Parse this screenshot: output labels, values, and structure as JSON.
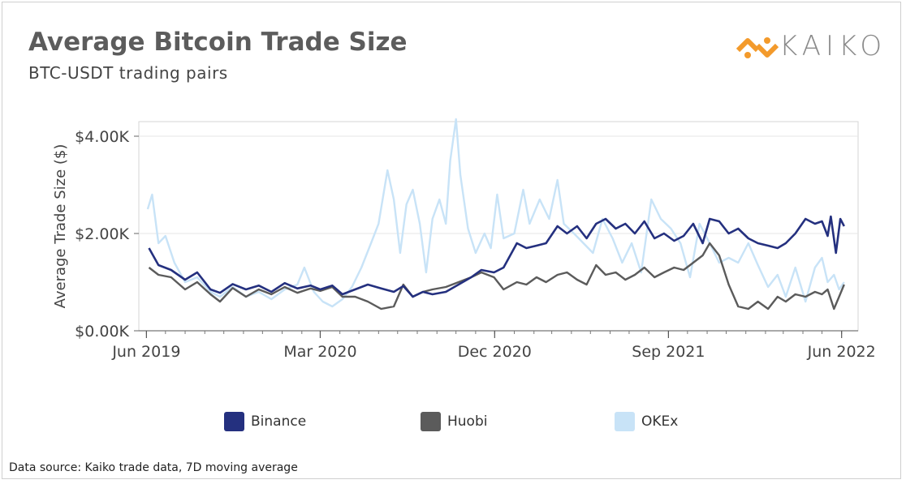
{
  "header": {
    "title": "Average Bitcoin Trade Size",
    "subtitle": "BTC-USDT trading pairs",
    "logo_text": "KAIKO"
  },
  "footer": {
    "source": "Data source: Kaiko trade data, 7D moving average"
  },
  "colors": {
    "Binance": "#24307f",
    "Huobi": "#5b5b5b",
    "OKEx": "#c8e3f7",
    "logo_orange": "#f39a2b",
    "grid": "#e6e6e6",
    "axis_text": "#444444"
  },
  "chart_data": {
    "type": "line",
    "title": "",
    "xlabel": "",
    "ylabel": "Average Trade Size ($)",
    "ylim": [
      0,
      4300
    ],
    "yticks": [
      0,
      2000,
      4000
    ],
    "ytick_labels": [
      "$0.00K",
      "$2.00K",
      "$4.00K"
    ],
    "xlim": [
      "2019-05-20",
      "2022-06-27"
    ],
    "xticks": [
      "2019-06-01",
      "2020-03-01",
      "2020-12-01",
      "2021-09-01",
      "2022-06-01"
    ],
    "xtick_labels": [
      "Jun 2019",
      "Mar 2020",
      "Dec 2020",
      "Sep 2021",
      "Jun 2022"
    ],
    "grid": true,
    "legend_position": "bottom",
    "series": [
      {
        "name": "Binance",
        "color": "#24307f",
        "points": [
          [
            "2019-06-05",
            1700
          ],
          [
            "2019-06-20",
            1350
          ],
          [
            "2019-07-10",
            1250
          ],
          [
            "2019-08-01",
            1050
          ],
          [
            "2019-08-20",
            1200
          ],
          [
            "2019-09-10",
            850
          ],
          [
            "2019-09-25",
            780
          ],
          [
            "2019-10-15",
            960
          ],
          [
            "2019-11-05",
            850
          ],
          [
            "2019-11-25",
            930
          ],
          [
            "2019-12-15",
            800
          ],
          [
            "2020-01-05",
            980
          ],
          [
            "2020-01-25",
            870
          ],
          [
            "2020-02-15",
            930
          ],
          [
            "2020-03-01",
            850
          ],
          [
            "2020-03-20",
            930
          ],
          [
            "2020-04-05",
            750
          ],
          [
            "2020-04-25",
            850
          ],
          [
            "2020-05-15",
            950
          ],
          [
            "2020-06-05",
            870
          ],
          [
            "2020-06-25",
            800
          ],
          [
            "2020-07-10",
            920
          ],
          [
            "2020-07-25",
            700
          ],
          [
            "2020-08-10",
            800
          ],
          [
            "2020-08-25",
            750
          ],
          [
            "2020-09-15",
            800
          ],
          [
            "2020-10-05",
            950
          ],
          [
            "2020-10-25",
            1100
          ],
          [
            "2020-11-10",
            1250
          ],
          [
            "2020-11-30",
            1200
          ],
          [
            "2020-12-15",
            1300
          ],
          [
            "2021-01-05",
            1800
          ],
          [
            "2021-01-20",
            1700
          ],
          [
            "2021-02-05",
            1750
          ],
          [
            "2021-02-20",
            1800
          ],
          [
            "2021-03-10",
            2150
          ],
          [
            "2021-03-25",
            2000
          ],
          [
            "2021-04-10",
            2150
          ],
          [
            "2021-04-25",
            1900
          ],
          [
            "2021-05-10",
            2200
          ],
          [
            "2021-05-25",
            2300
          ],
          [
            "2021-06-10",
            2100
          ],
          [
            "2021-06-25",
            2200
          ],
          [
            "2021-07-10",
            2000
          ],
          [
            "2021-07-25",
            2250
          ],
          [
            "2021-08-10",
            1900
          ],
          [
            "2021-08-25",
            2000
          ],
          [
            "2021-09-10",
            1850
          ],
          [
            "2021-09-25",
            1950
          ],
          [
            "2021-10-10",
            2200
          ],
          [
            "2021-10-25",
            1800
          ],
          [
            "2021-11-05",
            2300
          ],
          [
            "2021-11-20",
            2250
          ],
          [
            "2021-12-05",
            2000
          ],
          [
            "2021-12-20",
            2100
          ],
          [
            "2022-01-05",
            1900
          ],
          [
            "2022-01-20",
            1800
          ],
          [
            "2022-02-05",
            1750
          ],
          [
            "2022-02-20",
            1700
          ],
          [
            "2022-03-05",
            1800
          ],
          [
            "2022-03-20",
            2000
          ],
          [
            "2022-04-05",
            2300
          ],
          [
            "2022-04-20",
            2200
          ],
          [
            "2022-05-01",
            2250
          ],
          [
            "2022-05-10",
            1950
          ],
          [
            "2022-05-15",
            2350
          ],
          [
            "2022-05-23",
            1600
          ],
          [
            "2022-05-30",
            2300
          ],
          [
            "2022-06-05",
            2150
          ]
        ]
      },
      {
        "name": "Huobi",
        "color": "#5b5b5b",
        "points": [
          [
            "2019-06-05",
            1300
          ],
          [
            "2019-06-20",
            1150
          ],
          [
            "2019-07-10",
            1100
          ],
          [
            "2019-08-01",
            850
          ],
          [
            "2019-08-20",
            1000
          ],
          [
            "2019-09-10",
            750
          ],
          [
            "2019-09-25",
            600
          ],
          [
            "2019-10-15",
            880
          ],
          [
            "2019-11-05",
            700
          ],
          [
            "2019-11-25",
            850
          ],
          [
            "2019-12-15",
            750
          ],
          [
            "2020-01-05",
            900
          ],
          [
            "2020-01-25",
            780
          ],
          [
            "2020-02-15",
            870
          ],
          [
            "2020-03-01",
            820
          ],
          [
            "2020-03-20",
            900
          ],
          [
            "2020-04-05",
            700
          ],
          [
            "2020-04-25",
            700
          ],
          [
            "2020-05-15",
            600
          ],
          [
            "2020-06-05",
            450
          ],
          [
            "2020-06-25",
            500
          ],
          [
            "2020-07-10",
            950
          ],
          [
            "2020-07-25",
            700
          ],
          [
            "2020-08-10",
            800
          ],
          [
            "2020-08-25",
            850
          ],
          [
            "2020-09-15",
            900
          ],
          [
            "2020-10-05",
            1000
          ],
          [
            "2020-10-25",
            1100
          ],
          [
            "2020-11-10",
            1200
          ],
          [
            "2020-11-30",
            1100
          ],
          [
            "2020-12-15",
            850
          ],
          [
            "2021-01-05",
            1000
          ],
          [
            "2021-01-20",
            950
          ],
          [
            "2021-02-05",
            1100
          ],
          [
            "2021-02-20",
            1000
          ],
          [
            "2021-03-10",
            1150
          ],
          [
            "2021-03-25",
            1200
          ],
          [
            "2021-04-10",
            1050
          ],
          [
            "2021-04-25",
            950
          ],
          [
            "2021-05-10",
            1350
          ],
          [
            "2021-05-25",
            1150
          ],
          [
            "2021-06-10",
            1200
          ],
          [
            "2021-06-25",
            1050
          ],
          [
            "2021-07-10",
            1150
          ],
          [
            "2021-07-25",
            1300
          ],
          [
            "2021-08-10",
            1100
          ],
          [
            "2021-08-25",
            1200
          ],
          [
            "2021-09-10",
            1300
          ],
          [
            "2021-09-25",
            1250
          ],
          [
            "2021-10-10",
            1400
          ],
          [
            "2021-10-25",
            1550
          ],
          [
            "2021-11-05",
            1800
          ],
          [
            "2021-11-20",
            1550
          ],
          [
            "2021-12-05",
            950
          ],
          [
            "2021-12-20",
            500
          ],
          [
            "2022-01-05",
            450
          ],
          [
            "2022-01-20",
            600
          ],
          [
            "2022-02-05",
            450
          ],
          [
            "2022-02-20",
            700
          ],
          [
            "2022-03-05",
            600
          ],
          [
            "2022-03-20",
            750
          ],
          [
            "2022-04-05",
            700
          ],
          [
            "2022-04-20",
            800
          ],
          [
            "2022-05-01",
            750
          ],
          [
            "2022-05-10",
            850
          ],
          [
            "2022-05-20",
            450
          ],
          [
            "2022-05-28",
            700
          ],
          [
            "2022-06-05",
            950
          ]
        ]
      },
      {
        "name": "OKEx",
        "color": "#c8e3f7",
        "points": [
          [
            "2019-06-03",
            2500
          ],
          [
            "2019-06-10",
            2800
          ],
          [
            "2019-06-20",
            1800
          ],
          [
            "2019-07-01",
            1950
          ],
          [
            "2019-07-15",
            1400
          ],
          [
            "2019-08-01",
            1000
          ],
          [
            "2019-08-20",
            1100
          ],
          [
            "2019-09-10",
            800
          ],
          [
            "2019-09-25",
            700
          ],
          [
            "2019-10-15",
            900
          ],
          [
            "2019-11-05",
            700
          ],
          [
            "2019-11-25",
            800
          ],
          [
            "2019-12-15",
            650
          ],
          [
            "2020-01-05",
            850
          ],
          [
            "2020-01-25",
            950
          ],
          [
            "2020-02-05",
            1300
          ],
          [
            "2020-02-20",
            800
          ],
          [
            "2020-03-05",
            600
          ],
          [
            "2020-03-20",
            500
          ],
          [
            "2020-04-05",
            650
          ],
          [
            "2020-04-20",
            900
          ],
          [
            "2020-05-05",
            1300
          ],
          [
            "2020-05-20",
            1800
          ],
          [
            "2020-06-01",
            2200
          ],
          [
            "2020-06-15",
            3300
          ],
          [
            "2020-06-25",
            2700
          ],
          [
            "2020-07-05",
            1600
          ],
          [
            "2020-07-15",
            2600
          ],
          [
            "2020-07-25",
            2900
          ],
          [
            "2020-08-05",
            2200
          ],
          [
            "2020-08-15",
            1200
          ],
          [
            "2020-08-25",
            2300
          ],
          [
            "2020-09-05",
            2700
          ],
          [
            "2020-09-15",
            2200
          ],
          [
            "2020-09-22",
            3500
          ],
          [
            "2020-10-01",
            4350
          ],
          [
            "2020-10-08",
            3200
          ],
          [
            "2020-10-20",
            2100
          ],
          [
            "2020-11-01",
            1600
          ],
          [
            "2020-11-15",
            2000
          ],
          [
            "2020-11-25",
            1700
          ],
          [
            "2020-12-05",
            2800
          ],
          [
            "2020-12-15",
            1900
          ],
          [
            "2021-01-01",
            2000
          ],
          [
            "2021-01-15",
            2900
          ],
          [
            "2021-01-25",
            2200
          ],
          [
            "2021-02-10",
            2700
          ],
          [
            "2021-02-25",
            2300
          ],
          [
            "2021-03-10",
            3100
          ],
          [
            "2021-03-20",
            2200
          ],
          [
            "2021-04-05",
            2000
          ],
          [
            "2021-04-20",
            1800
          ],
          [
            "2021-05-05",
            1600
          ],
          [
            "2021-05-20",
            2300
          ],
          [
            "2021-06-05",
            1900
          ],
          [
            "2021-06-20",
            1400
          ],
          [
            "2021-07-05",
            1800
          ],
          [
            "2021-07-20",
            1200
          ],
          [
            "2021-08-05",
            2700
          ],
          [
            "2021-08-20",
            2300
          ],
          [
            "2021-09-05",
            2100
          ],
          [
            "2021-09-20",
            1800
          ],
          [
            "2021-10-05",
            1100
          ],
          [
            "2021-10-20",
            2200
          ],
          [
            "2021-11-05",
            1800
          ],
          [
            "2021-11-20",
            1400
          ],
          [
            "2021-12-05",
            1500
          ],
          [
            "2021-12-20",
            1400
          ],
          [
            "2022-01-05",
            1800
          ],
          [
            "2022-01-20",
            1350
          ],
          [
            "2022-02-05",
            900
          ],
          [
            "2022-02-20",
            1150
          ],
          [
            "2022-03-05",
            700
          ],
          [
            "2022-03-20",
            1300
          ],
          [
            "2022-04-05",
            600
          ],
          [
            "2022-04-20",
            1300
          ],
          [
            "2022-05-01",
            1500
          ],
          [
            "2022-05-10",
            1000
          ],
          [
            "2022-05-20",
            1150
          ],
          [
            "2022-05-28",
            850
          ],
          [
            "2022-06-05",
            1000
          ]
        ]
      }
    ]
  }
}
